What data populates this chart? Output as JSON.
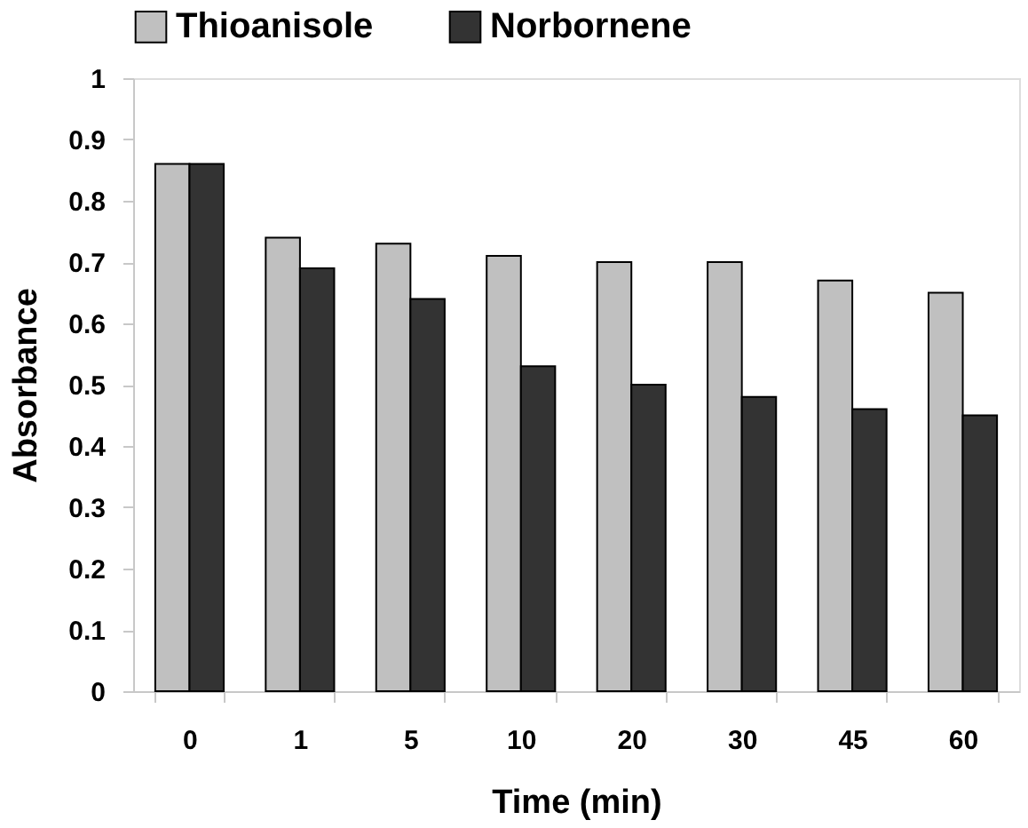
{
  "chart_data": {
    "type": "bar",
    "xlabel": "Time (min)",
    "ylabel": "Absorbance",
    "categories": [
      "0",
      "1",
      "5",
      "10",
      "20",
      "30",
      "45",
      "60"
    ],
    "series": [
      {
        "name": "Thioanisole",
        "color": "#c0c0c0",
        "values": [
          0.86,
          0.74,
          0.73,
          0.71,
          0.7,
          0.7,
          0.67,
          0.65
        ]
      },
      {
        "name": "Norbornene",
        "color": "#333333",
        "values": [
          0.86,
          0.69,
          0.64,
          0.53,
          0.5,
          0.48,
          0.46,
          0.45
        ]
      }
    ],
    "ylim": [
      0,
      1
    ],
    "yticks": [
      0,
      0.1,
      0.2,
      0.3,
      0.4,
      0.5,
      0.6,
      0.7,
      0.8,
      0.9,
      1
    ],
    "grid": false,
    "legend": "top"
  }
}
